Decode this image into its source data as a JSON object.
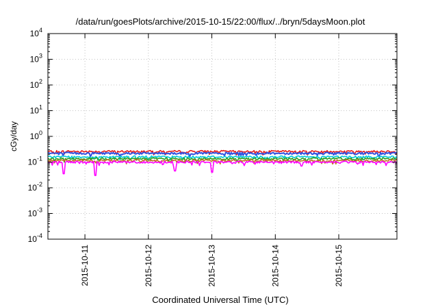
{
  "chart_data": {
    "type": "line",
    "title": "/data/run/goesPlots/archive/2015-10-15/22:00/flux/../bryn/5daysMoon.plot",
    "xlabel": "Coordinated Universal Time (UTC)",
    "ylabel": "cGy/day",
    "yscale": "log",
    "ylim": [
      0.0001,
      10000
    ],
    "y_ticks": [
      {
        "base": "10",
        "exp": "-4"
      },
      {
        "base": "10",
        "exp": "-3"
      },
      {
        "base": "10",
        "exp": "-2"
      },
      {
        "base": "10",
        "exp": "-1"
      },
      {
        "base": "10",
        "exp": "0"
      },
      {
        "base": "10",
        "exp": "1"
      },
      {
        "base": "10",
        "exp": "2"
      },
      {
        "base": "10",
        "exp": "3"
      },
      {
        "base": "10",
        "exp": "4"
      }
    ],
    "xlim": [
      "2015-10-10T10:00",
      "2015-10-15T22:00"
    ],
    "x_tick_labels": [
      "2015-10-11",
      "2015-10-12",
      "2015-10-13",
      "2015-10-14",
      "2015-10-15"
    ],
    "grid": true,
    "series": [
      {
        "color": "#e41a1c",
        "typical": 0.26,
        "values": [
          {
            "x": "2015-10-10T10:00",
            "y": 0.27
          },
          {
            "x": "2015-10-10T22:00",
            "y": 0.26
          },
          {
            "x": "2015-10-11T10:00",
            "y": 0.27
          },
          {
            "x": "2015-10-11T22:00",
            "y": 0.25
          },
          {
            "x": "2015-10-12T10:00",
            "y": 0.28
          },
          {
            "x": "2015-10-12T22:00",
            "y": 0.26
          },
          {
            "x": "2015-10-13T10:00",
            "y": 0.27
          },
          {
            "x": "2015-10-13T22:00",
            "y": 0.26
          },
          {
            "x": "2015-10-14T10:00",
            "y": 0.28
          },
          {
            "x": "2015-10-14T22:00",
            "y": 0.25
          },
          {
            "x": "2015-10-15T10:00",
            "y": 0.27
          },
          {
            "x": "2015-10-15T22:00",
            "y": 0.26
          }
        ]
      },
      {
        "color": "#3050e0",
        "typical": 0.22,
        "values": [
          {
            "x": "2015-10-10T10:00",
            "y": 0.23
          },
          {
            "x": "2015-10-10T22:00",
            "y": 0.22
          },
          {
            "x": "2015-10-11T10:00",
            "y": 0.23
          },
          {
            "x": "2015-10-11T22:00",
            "y": 0.21
          },
          {
            "x": "2015-10-12T10:00",
            "y": 0.24
          },
          {
            "x": "2015-10-12T22:00",
            "y": 0.22
          },
          {
            "x": "2015-10-13T10:00",
            "y": 0.23
          },
          {
            "x": "2015-10-13T22:00",
            "y": 0.22
          },
          {
            "x": "2015-10-14T10:00",
            "y": 0.24
          },
          {
            "x": "2015-10-14T22:00",
            "y": 0.21
          },
          {
            "x": "2015-10-15T10:00",
            "y": 0.23
          },
          {
            "x": "2015-10-15T22:00",
            "y": 0.22
          }
        ]
      },
      {
        "color": "#00c8d8",
        "typical": 0.16,
        "values": [
          {
            "x": "2015-10-10T10:00",
            "y": 0.16
          },
          {
            "x": "2015-10-10T22:00",
            "y": 0.16
          },
          {
            "x": "2015-10-11T10:00",
            "y": 0.17
          },
          {
            "x": "2015-10-11T22:00",
            "y": 0.15
          },
          {
            "x": "2015-10-12T10:00",
            "y": 0.16
          },
          {
            "x": "2015-10-12T22:00",
            "y": 0.16
          },
          {
            "x": "2015-10-13T10:00",
            "y": 0.17
          },
          {
            "x": "2015-10-13T22:00",
            "y": 0.16
          },
          {
            "x": "2015-10-14T10:00",
            "y": 0.16
          },
          {
            "x": "2015-10-14T22:00",
            "y": 0.15
          },
          {
            "x": "2015-10-15T10:00",
            "y": 0.17
          },
          {
            "x": "2015-10-15T22:00",
            "y": 0.16
          }
        ]
      },
      {
        "color": "#28a020",
        "typical": 0.135,
        "values": [
          {
            "x": "2015-10-10T10:00",
            "y": 0.135
          },
          {
            "x": "2015-10-10T22:00",
            "y": 0.13
          },
          {
            "x": "2015-10-11T10:00",
            "y": 0.14
          },
          {
            "x": "2015-10-11T22:00",
            "y": 0.13
          },
          {
            "x": "2015-10-12T10:00",
            "y": 0.135
          },
          {
            "x": "2015-10-12T22:00",
            "y": 0.13
          },
          {
            "x": "2015-10-13T10:00",
            "y": 0.14
          },
          {
            "x": "2015-10-13T22:00",
            "y": 0.135
          },
          {
            "x": "2015-10-14T10:00",
            "y": 0.13
          },
          {
            "x": "2015-10-14T22:00",
            "y": 0.13
          },
          {
            "x": "2015-10-15T10:00",
            "y": 0.14
          },
          {
            "x": "2015-10-15T22:00",
            "y": 0.135
          }
        ]
      },
      {
        "color": "#c07020",
        "typical": 0.115,
        "values": [
          {
            "x": "2015-10-10T10:00",
            "y": 0.115
          },
          {
            "x": "2015-10-10T22:00",
            "y": 0.11
          },
          {
            "x": "2015-10-11T10:00",
            "y": 0.12
          },
          {
            "x": "2015-10-11T22:00",
            "y": 0.11
          },
          {
            "x": "2015-10-12T10:00",
            "y": 0.115
          },
          {
            "x": "2015-10-12T22:00",
            "y": 0.11
          },
          {
            "x": "2015-10-13T10:00",
            "y": 0.12
          },
          {
            "x": "2015-10-13T22:00",
            "y": 0.115
          },
          {
            "x": "2015-10-14T10:00",
            "y": 0.11
          },
          {
            "x": "2015-10-14T22:00",
            "y": 0.11
          },
          {
            "x": "2015-10-15T10:00",
            "y": 0.12
          },
          {
            "x": "2015-10-15T22:00",
            "y": 0.115
          }
        ]
      },
      {
        "color": "#ff00ff",
        "typical": 0.1,
        "values": [
          {
            "x": "2015-10-10T10:00",
            "y": 0.1
          },
          {
            "x": "2015-10-10T16:00",
            "y": 0.035
          },
          {
            "x": "2015-10-10T22:00",
            "y": 0.1
          },
          {
            "x": "2015-10-11T04:00",
            "y": 0.03
          },
          {
            "x": "2015-10-11T10:00",
            "y": 0.1
          },
          {
            "x": "2015-10-11T22:00",
            "y": 0.1
          },
          {
            "x": "2015-10-12T10:00",
            "y": 0.045
          },
          {
            "x": "2015-10-12T22:00",
            "y": 0.1
          },
          {
            "x": "2015-10-13T00:00",
            "y": 0.04
          },
          {
            "x": "2015-10-13T10:00",
            "y": 0.1
          },
          {
            "x": "2015-10-14T10:00",
            "y": 0.07
          },
          {
            "x": "2015-10-14T22:00",
            "y": 0.1
          },
          {
            "x": "2015-10-15T10:00",
            "y": 0.1
          },
          {
            "x": "2015-10-15T22:00",
            "y": 0.085
          }
        ]
      }
    ],
    "dips": [
      {
        "x": "2015-10-10T16:00",
        "y": 0.035
      },
      {
        "x": "2015-10-11T04:00",
        "y": 0.03
      },
      {
        "x": "2015-10-12T10:00",
        "y": 0.045
      },
      {
        "x": "2015-10-13T00:00",
        "y": 0.04
      },
      {
        "x": "2015-10-14T10:00",
        "y": 0.07
      },
      {
        "x": "2015-10-15T22:00",
        "y": 0.085
      }
    ]
  }
}
